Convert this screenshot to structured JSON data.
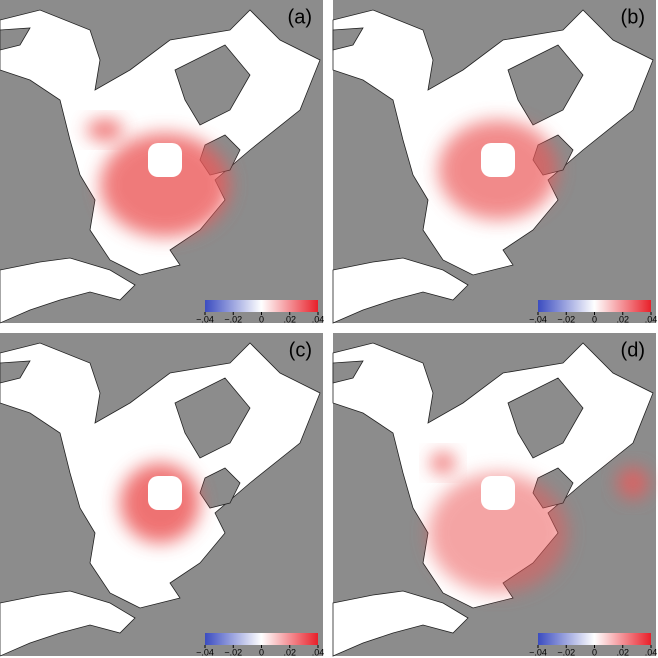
{
  "panels": [
    {
      "label": "(a)"
    },
    {
      "label": "(b)"
    },
    {
      "label": "(c)"
    },
    {
      "label": "(d)"
    }
  ],
  "colorbar": {
    "colors": [
      "#3b4cc0",
      "#ffffff",
      "#e8202a"
    ],
    "lim": [
      -0.04,
      0.04
    ],
    "ticks": [
      {
        "value": -0.04,
        "label": "−.04"
      },
      {
        "value": -0.02,
        "label": "−.02"
      },
      0,
      {
        "value": 0.02,
        "label": ".02"
      },
      {
        "value": 0.04,
        "label": ".04"
      }
    ]
  }
}
